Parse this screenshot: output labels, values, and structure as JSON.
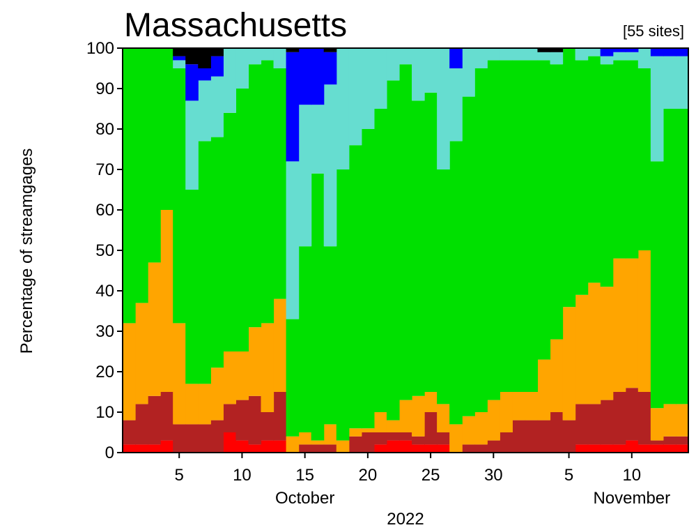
{
  "chart_data": {
    "type": "area",
    "title": "Massachusetts",
    "annotation": "[55 sites]",
    "ylabel": "Percentage of streamgages",
    "year_label": "2022",
    "ylim": [
      0,
      100
    ],
    "yticks": [
      0,
      10,
      20,
      30,
      40,
      50,
      60,
      70,
      80,
      90,
      100
    ],
    "xticks": [
      {
        "date": "2022-10-05",
        "label": "5"
      },
      {
        "date": "2022-10-10",
        "label": "10"
      },
      {
        "date": "2022-10-15",
        "label": "15"
      },
      {
        "date": "2022-10-20",
        "label": "20"
      },
      {
        "date": "2022-10-25",
        "label": "25"
      },
      {
        "date": "2022-10-30",
        "label": "30"
      },
      {
        "date": "2022-11-05",
        "label": "5"
      },
      {
        "date": "2022-11-10",
        "label": "10"
      }
    ],
    "month_labels": [
      {
        "date": "2022-10-15",
        "label": "October"
      },
      {
        "date": "2022-11-10",
        "label": "November"
      }
    ],
    "x": [
      "2022-10-01",
      "2022-10-02",
      "2022-10-03",
      "2022-10-04",
      "2022-10-05",
      "2022-10-06",
      "2022-10-07",
      "2022-10-08",
      "2022-10-09",
      "2022-10-10",
      "2022-10-11",
      "2022-10-12",
      "2022-10-13",
      "2022-10-14",
      "2022-10-15",
      "2022-10-16",
      "2022-10-17",
      "2022-10-18",
      "2022-10-19",
      "2022-10-20",
      "2022-10-21",
      "2022-10-22",
      "2022-10-23",
      "2022-10-24",
      "2022-10-25",
      "2022-10-26",
      "2022-10-27",
      "2022-10-28",
      "2022-10-29",
      "2022-10-30",
      "2022-10-31",
      "2022-11-01",
      "2022-11-02",
      "2022-11-03",
      "2022-11-04",
      "2022-11-05",
      "2022-11-06",
      "2022-11-07",
      "2022-11-08",
      "2022-11-09",
      "2022-11-10",
      "2022-11-11",
      "2022-11-12",
      "2022-11-13",
      "2022-11-14"
    ],
    "series_boundaries": [
      [
        0,
        0,
        0,
        0,
        0,
        0,
        0,
        0,
        0,
        0,
        0,
        0,
        0,
        0,
        0,
        0,
        0,
        0,
        0,
        0,
        0,
        0,
        0,
        0,
        0,
        0,
        0,
        0,
        0,
        0,
        0,
        0,
        0,
        0,
        0,
        0,
        0,
        0,
        0,
        0,
        0,
        0,
        0,
        0,
        0
      ],
      [
        2,
        2,
        2,
        3,
        0,
        0,
        0,
        0,
        5,
        3,
        2,
        3,
        3,
        0,
        0,
        0,
        0,
        0,
        0,
        0,
        2,
        3,
        3,
        2,
        2,
        2,
        0,
        0,
        0,
        0,
        0,
        0,
        0,
        0,
        0,
        0,
        2,
        2,
        2,
        2,
        3,
        2,
        2,
        2,
        2
      ],
      [
        8,
        12,
        14,
        15,
        7,
        7,
        7,
        8,
        12,
        13,
        14,
        10,
        15,
        0,
        2,
        2,
        2,
        0,
        4,
        5,
        5,
        5,
        5,
        4,
        10,
        5,
        0,
        2,
        2,
        3,
        5,
        8,
        8,
        8,
        10,
        8,
        12,
        12,
        13,
        15,
        16,
        15,
        3,
        4,
        4
      ],
      [
        32,
        37,
        47,
        60,
        32,
        17,
        17,
        21,
        25,
        25,
        31,
        32,
        38,
        4,
        5,
        3,
        7,
        3,
        6,
        6,
        10,
        8,
        13,
        14,
        15,
        12,
        7,
        9,
        10,
        13,
        15,
        15,
        15,
        23,
        28,
        36,
        39,
        42,
        41,
        48,
        48,
        50,
        11,
        12,
        12
      ],
      [
        100,
        100,
        100,
        100,
        95,
        65,
        77,
        78,
        84,
        90,
        96,
        97,
        95,
        33,
        51,
        69,
        51,
        70,
        76,
        80,
        85,
        92,
        96,
        87,
        89,
        70,
        77,
        88,
        95,
        97,
        97,
        97,
        97,
        97,
        96,
        100,
        97,
        98,
        96,
        97,
        97,
        95,
        72,
        85,
        85
      ],
      [
        100,
        100,
        100,
        100,
        97,
        87,
        92,
        93,
        100,
        100,
        100,
        100,
        100,
        72,
        86,
        86,
        91,
        100,
        100,
        100,
        100,
        100,
        100,
        100,
        100,
        100,
        95,
        100,
        100,
        100,
        100,
        100,
        100,
        100,
        100,
        100,
        100,
        100,
        98,
        99,
        99,
        100,
        98,
        98,
        98
      ],
      [
        100,
        100,
        100,
        100,
        98,
        96,
        95,
        98,
        100,
        100,
        100,
        100,
        100,
        99,
        100,
        100,
        99,
        100,
        100,
        100,
        100,
        100,
        100,
        100,
        100,
        100,
        100,
        100,
        100,
        100,
        100,
        100,
        100,
        99,
        99,
        100,
        100,
        100,
        100,
        100,
        100,
        100,
        100,
        100,
        100
      ],
      [
        100,
        100,
        100,
        100,
        100,
        100,
        100,
        100,
        100,
        100,
        100,
        100,
        100,
        100,
        100,
        100,
        100,
        100,
        100,
        100,
        100,
        100,
        100,
        100,
        100,
        100,
        100,
        100,
        100,
        100,
        100,
        100,
        100,
        100,
        100,
        100,
        100,
        100,
        100,
        100,
        100,
        100,
        100,
        100,
        100
      ]
    ],
    "series_colors": [
      "#ff0000",
      "#b22222",
      "#ffa500",
      "#00e000",
      "#66ddd0",
      "#0000ff",
      "#000000"
    ],
    "grid": false,
    "legend": "none"
  }
}
